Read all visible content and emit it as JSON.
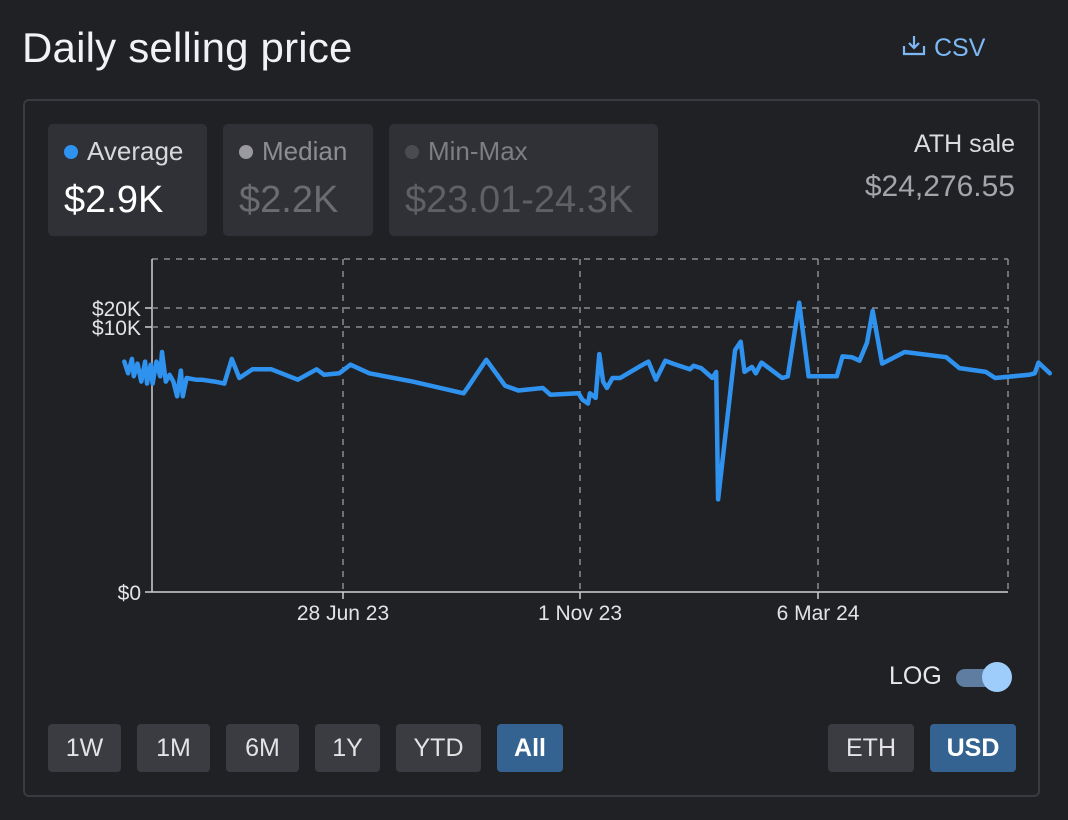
{
  "header": {
    "title": "Daily selling price",
    "csv_label": "CSV"
  },
  "stats": [
    {
      "label": "Average",
      "value": "$2.9K",
      "dot_color": "#2f92ef"
    },
    {
      "label": "Median",
      "value": "$2.2K",
      "dot_color": "#9a9a9e"
    },
    {
      "label": "Min-Max",
      "value": "$23.01-24.3K",
      "dot_color": "#4a4b50"
    }
  ],
  "ath": {
    "label": "ATH sale",
    "value": "$24,276.55"
  },
  "toggle": {
    "label": "LOG",
    "on": true
  },
  "ranges": [
    "1W",
    "1M",
    "6M",
    "1Y",
    "YTD",
    "All"
  ],
  "active_range": "All",
  "currencies": [
    "ETH",
    "USD"
  ],
  "active_currency": "USD",
  "colors": {
    "line": "#2f92ef",
    "accent": "#356391",
    "grid": "#8a8b90"
  },
  "chart_data": {
    "type": "line",
    "scale": "log",
    "x_ticks": [
      "28 Jun 23",
      "1 Nov 23",
      "6 Mar 24"
    ],
    "y_ticks": [
      "$20K",
      "$10K",
      "$0"
    ],
    "grid": true,
    "series": [
      {
        "points": [
          [
            "2023-03-04",
            3000
          ],
          [
            "2023-03-06",
            2000
          ],
          [
            "2023-03-08",
            3300
          ],
          [
            "2023-03-09",
            1800
          ],
          [
            "2023-03-11",
            2800
          ],
          [
            "2023-03-13",
            1500
          ],
          [
            "2023-03-15",
            3000
          ],
          [
            "2023-03-16",
            1400
          ],
          [
            "2023-03-18",
            2700
          ],
          [
            "2023-03-19",
            1400
          ],
          [
            "2023-03-21",
            3000
          ],
          [
            "2023-03-23",
            1800
          ],
          [
            "2023-03-24",
            4200
          ],
          [
            "2023-03-26",
            1500
          ],
          [
            "2023-03-28",
            1900
          ],
          [
            "2023-03-30",
            1500
          ],
          [
            "2023-04-01",
            900
          ],
          [
            "2023-04-03",
            2200
          ],
          [
            "2023-04-04",
            900
          ],
          [
            "2023-04-06",
            1700
          ],
          [
            "2023-04-11",
            1600
          ],
          [
            "2023-04-14",
            1600
          ],
          [
            "2023-04-21",
            1500
          ],
          [
            "2023-04-26",
            1400
          ],
          [
            "2023-04-30",
            3300
          ],
          [
            "2023-05-04",
            1700
          ],
          [
            "2023-05-11",
            2300
          ],
          [
            "2023-05-21",
            2300
          ],
          [
            "2023-06-04",
            1600
          ],
          [
            "2023-06-14",
            2300
          ],
          [
            "2023-06-18",
            1900
          ],
          [
            "2023-06-26",
            2000
          ],
          [
            "2023-07-02",
            2700
          ],
          [
            "2023-07-12",
            2000
          ],
          [
            "2023-08-04",
            1500
          ],
          [
            "2023-08-31",
            1000
          ],
          [
            "2023-09-02",
            1200
          ],
          [
            "2023-09-12",
            3200
          ],
          [
            "2023-09-22",
            1300
          ],
          [
            "2023-09-29",
            1100
          ],
          [
            "2023-10-12",
            1200
          ],
          [
            "2023-10-16",
            950
          ],
          [
            "2023-10-31",
            1000
          ],
          [
            "2023-11-02",
            800
          ],
          [
            "2023-11-05",
            700
          ],
          [
            "2023-11-06",
            1000
          ],
          [
            "2023-11-09",
            850
          ],
          [
            "2023-11-11",
            3900
          ],
          [
            "2023-11-13",
            1500
          ],
          [
            "2023-11-15",
            1200
          ],
          [
            "2023-11-18",
            1700
          ],
          [
            "2023-11-22",
            1700
          ],
          [
            "2023-12-02",
            2500
          ],
          [
            "2023-12-07",
            3000
          ],
          [
            "2023-12-11",
            1600
          ],
          [
            "2023-12-16",
            3100
          ],
          [
            "2023-12-20",
            2800
          ],
          [
            "2023-12-29",
            2300
          ],
          [
            "2023-12-31",
            2600
          ],
          [
            "2024-01-04",
            2400
          ],
          [
            "2024-01-10",
            1700
          ],
          [
            "2024-01-12",
            2100
          ],
          [
            "2024-01-13",
            25
          ],
          [
            "2024-01-22",
            4500
          ],
          [
            "2024-01-25",
            6000
          ],
          [
            "2024-01-27",
            2100
          ],
          [
            "2024-01-31",
            2500
          ],
          [
            "2024-02-02",
            2000
          ],
          [
            "2024-02-05",
            2900
          ],
          [
            "2024-02-16",
            1700
          ],
          [
            "2024-02-19",
            1800
          ],
          [
            "2024-02-25",
            24276
          ],
          [
            "2024-03-01",
            1800
          ],
          [
            "2024-03-16",
            1800
          ],
          [
            "2024-03-19",
            3600
          ],
          [
            "2024-03-24",
            3500
          ],
          [
            "2024-03-28",
            3100
          ],
          [
            "2024-04-01",
            5800
          ],
          [
            "2024-04-04",
            18000
          ],
          [
            "2024-04-09",
            2800
          ],
          [
            "2024-04-21",
            4200
          ],
          [
            "2024-05-13",
            3500
          ],
          [
            "2024-05-20",
            2400
          ],
          [
            "2024-06-03",
            2100
          ],
          [
            "2024-06-08",
            1700
          ],
          [
            "2024-06-26",
            1900
          ],
          [
            "2024-06-29",
            2000
          ],
          [
            "2024-07-01",
            2900
          ],
          [
            "2024-07-07",
            2000
          ]
        ]
      }
    ]
  }
}
